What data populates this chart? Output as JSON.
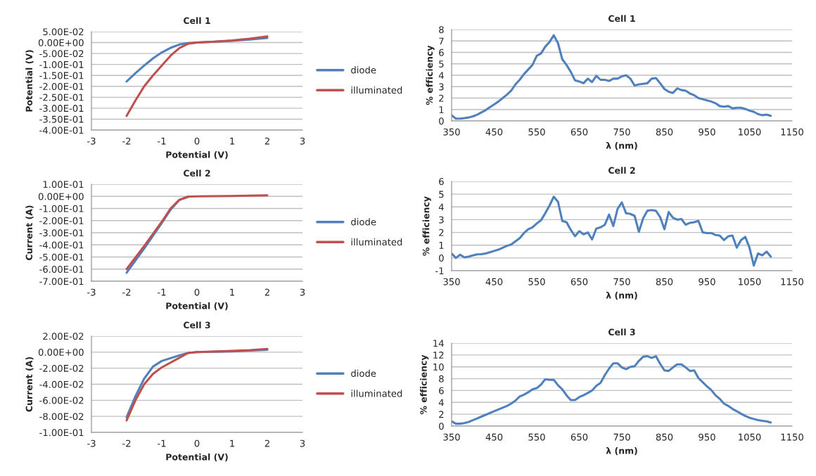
{
  "chart_data": [
    {
      "type": "line",
      "title": "Cell 1",
      "xlabel": "Potential (V)",
      "ylabel": "Potential (V)",
      "xlim": [
        -3,
        3
      ],
      "xticks": [
        -3,
        -2,
        -1,
        0,
        1,
        2,
        3
      ],
      "ylim": [
        -0.4,
        0.05
      ],
      "yticks": [
        {
          "value": 0.05,
          "label": "5.00E-02"
        },
        {
          "value": 0,
          "label": "0.00E+00"
        },
        {
          "value": -0.05,
          "label": "-5.00E-02"
        },
        {
          "value": -0.1,
          "label": "-1.00E-01"
        },
        {
          "value": -0.15,
          "label": "-1.50E-01"
        },
        {
          "value": -0.2,
          "label": "-2.00E-01"
        },
        {
          "value": -0.25,
          "label": "-2.50E-01"
        },
        {
          "value": -0.3,
          "label": "-3.00E-01"
        },
        {
          "value": -0.35,
          "label": "-3.50E-01"
        },
        {
          "value": -0.4,
          "label": "-4.00E-01"
        }
      ],
      "grid": "y",
      "legend": "right",
      "series": [
        {
          "name": "diode",
          "color": "#4f81bd",
          "x": [
            -2,
            -1.75,
            -1.5,
            -1.25,
            -1,
            -0.75,
            -0.5,
            -0.25,
            0,
            0.5,
            1,
            1.5,
            2
          ],
          "values": [
            -0.178,
            -0.14,
            -0.105,
            -0.072,
            -0.045,
            -0.024,
            -0.009,
            -0.002,
            0,
            0.004,
            0.008,
            0.014,
            0.021
          ]
        },
        {
          "name": "illuminated",
          "color": "#c0504d",
          "x": [
            -2,
            -1.75,
            -1.5,
            -1.25,
            -1,
            -0.75,
            -0.5,
            -0.25,
            0,
            0.5,
            1,
            1.5,
            2
          ],
          "values": [
            -0.335,
            -0.265,
            -0.2,
            -0.15,
            -0.105,
            -0.06,
            -0.025,
            -0.005,
            0,
            0.004,
            0.01,
            0.018,
            0.028
          ]
        }
      ]
    },
    {
      "type": "line",
      "title": "Cell 1",
      "xlabel": "λ (nm)",
      "ylabel": "% efficiency",
      "xlim": [
        350,
        1150
      ],
      "xticks": [
        350,
        450,
        550,
        650,
        750,
        850,
        950,
        1050,
        1150
      ],
      "ylim": [
        0,
        8
      ],
      "yticks": [
        0,
        1,
        2,
        3,
        4,
        5,
        6,
        7,
        8
      ],
      "grid": "y",
      "series": [
        {
          "color": "#4f81bd",
          "x": [
            350,
            360,
            370,
            380,
            390,
            400,
            410,
            420,
            430,
            440,
            450,
            460,
            470,
            480,
            490,
            500,
            510,
            520,
            530,
            540,
            550,
            560,
            570,
            580,
            590,
            600,
            610,
            620,
            630,
            640,
            650,
            660,
            670,
            680,
            690,
            700,
            710,
            720,
            730,
            740,
            750,
            760,
            770,
            780,
            790,
            800,
            810,
            820,
            830,
            840,
            850,
            860,
            870,
            880,
            890,
            900,
            910,
            920,
            930,
            940,
            950,
            960,
            970,
            980,
            990,
            1000,
            1010,
            1020,
            1030,
            1040,
            1050,
            1060,
            1070,
            1080,
            1090,
            1100
          ],
          "values": [
            0.5,
            0.2,
            0.2,
            0.25,
            0.3,
            0.4,
            0.55,
            0.75,
            0.95,
            1.2,
            1.45,
            1.7,
            2.0,
            2.3,
            2.65,
            3.2,
            3.6,
            4.1,
            4.5,
            4.9,
            5.7,
            5.9,
            6.5,
            6.9,
            7.5,
            6.8,
            5.4,
            4.9,
            4.3,
            3.55,
            3.45,
            3.3,
            3.7,
            3.4,
            3.95,
            3.6,
            3.6,
            3.5,
            3.7,
            3.7,
            3.9,
            4.0,
            3.7,
            3.1,
            3.2,
            3.25,
            3.3,
            3.7,
            3.75,
            3.3,
            2.8,
            2.55,
            2.45,
            2.85,
            2.7,
            2.65,
            2.4,
            2.25,
            2.0,
            1.9,
            1.8,
            1.7,
            1.55,
            1.3,
            1.25,
            1.3,
            1.1,
            1.15,
            1.15,
            1.05,
            0.9,
            0.8,
            0.6,
            0.5,
            0.55,
            0.45
          ]
        }
      ]
    },
    {
      "type": "line",
      "title": "Cell 2",
      "xlabel": "Potential (V)",
      "ylabel": "Current (A)",
      "xlim": [
        -3,
        3
      ],
      "xticks": [
        -3,
        -2,
        -1,
        0,
        1,
        2,
        3
      ],
      "ylim": [
        -0.7,
        0.1
      ],
      "yticks": [
        {
          "value": 0.1,
          "label": "1.00E-01"
        },
        {
          "value": 0,
          "label": "0.00E+00"
        },
        {
          "value": -0.1,
          "label": "-1.00E-01"
        },
        {
          "value": -0.2,
          "label": "-2.00E-01"
        },
        {
          "value": -0.3,
          "label": "-3.00E-01"
        },
        {
          "value": -0.4,
          "label": "-4.00E-01"
        },
        {
          "value": -0.5,
          "label": "-5.00E-01"
        },
        {
          "value": -0.6,
          "label": "-6.00E-01"
        },
        {
          "value": -0.7,
          "label": "-7.00E-01"
        }
      ],
      "grid": "y",
      "legend": "right",
      "series": [
        {
          "name": "diode",
          "color": "#4f81bd",
          "x": [
            -2,
            -1.5,
            -1,
            -0.75,
            -0.5,
            -0.25
          ],
          "values": [
            -0.63,
            -0.43,
            -0.22,
            -0.11,
            -0.03,
            -0.003
          ]
        },
        {
          "name": "illuminated",
          "color": "#c0504d",
          "x": [
            -2,
            -1.5,
            -1,
            -0.75,
            -0.5,
            -0.25,
            0,
            1,
            2
          ],
          "values": [
            -0.6,
            -0.41,
            -0.21,
            -0.1,
            -0.028,
            -0.003,
            0,
            0.003,
            0.009
          ]
        }
      ]
    },
    {
      "type": "line",
      "title": "Cell 2",
      "xlabel": "λ (nm)",
      "ylabel": "% efficiency",
      "xlim": [
        350,
        1150
      ],
      "xticks": [
        350,
        450,
        550,
        650,
        750,
        850,
        950,
        1050,
        1150
      ],
      "ylim": [
        -1,
        6
      ],
      "yticks": [
        -1,
        0,
        1,
        2,
        3,
        4,
        5,
        6
      ],
      "grid": "y",
      "series": [
        {
          "color": "#4f81bd",
          "x": [
            350,
            360,
            370,
            380,
            390,
            400,
            410,
            420,
            430,
            440,
            450,
            460,
            470,
            480,
            490,
            500,
            510,
            520,
            530,
            540,
            550,
            560,
            570,
            580,
            590,
            600,
            610,
            620,
            630,
            640,
            650,
            660,
            670,
            680,
            690,
            700,
            710,
            720,
            730,
            740,
            750,
            760,
            770,
            780,
            790,
            800,
            810,
            820,
            830,
            840,
            850,
            860,
            870,
            880,
            890,
            900,
            910,
            920,
            930,
            940,
            950,
            960,
            970,
            980,
            990,
            1000,
            1010,
            1020,
            1030,
            1040,
            1050,
            1060,
            1070,
            1080,
            1090,
            1100
          ],
          "values": [
            0.35,
            0.0,
            0.25,
            0.05,
            0.1,
            0.2,
            0.28,
            0.3,
            0.35,
            0.45,
            0.55,
            0.65,
            0.8,
            0.95,
            1.05,
            1.3,
            1.55,
            1.95,
            2.25,
            2.4,
            2.7,
            2.95,
            3.5,
            4.1,
            4.8,
            4.4,
            2.9,
            2.8,
            2.2,
            1.7,
            2.1,
            1.85,
            2.0,
            1.45,
            2.3,
            2.4,
            2.6,
            3.4,
            2.5,
            3.85,
            4.35,
            3.5,
            3.45,
            3.3,
            2.05,
            3.1,
            3.7,
            3.75,
            3.7,
            3.2,
            2.25,
            3.6,
            3.15,
            3.0,
            3.05,
            2.6,
            2.75,
            2.8,
            2.9,
            2.0,
            1.95,
            1.95,
            1.8,
            1.75,
            1.4,
            1.7,
            1.75,
            0.8,
            1.4,
            1.65,
            0.8,
            -0.6,
            0.35,
            0.2,
            0.5,
            0.1
          ]
        }
      ]
    },
    {
      "type": "line",
      "title": "Cell 3",
      "xlabel": "Potential (V)",
      "ylabel": "Current (A)",
      "xlim": [
        -3,
        3
      ],
      "xticks": [
        -3,
        -2,
        -1,
        0,
        1,
        2,
        3
      ],
      "ylim": [
        -0.1,
        0.02
      ],
      "yticks": [
        {
          "value": 0.02,
          "label": "2.00E-02"
        },
        {
          "value": 0,
          "label": "0.00E+00"
        },
        {
          "value": -0.02,
          "label": "-2.00E-02"
        },
        {
          "value": -0.04,
          "label": "-4.00E-02"
        },
        {
          "value": -0.06,
          "label": "-6.00E-02"
        },
        {
          "value": -0.08,
          "label": "-8.00E-02"
        },
        {
          "value": -0.1,
          "label": "-1.00E-01"
        }
      ],
      "grid": "y",
      "legend": "right",
      "series": [
        {
          "name": "diode",
          "color": "#4f81bd",
          "x": [
            -2,
            -1.75,
            -1.5,
            -1.25,
            -1,
            -0.5,
            -0.25,
            0,
            1,
            2
          ],
          "values": [
            -0.081,
            -0.055,
            -0.033,
            -0.018,
            -0.011,
            -0.004,
            -0.001,
            0,
            0.001,
            0.003
          ]
        },
        {
          "name": "illuminated",
          "color": "#c0504d",
          "x": [
            -2,
            -1.75,
            -1.5,
            -1.25,
            -1,
            -0.5,
            -0.25,
            0,
            1,
            1.5,
            2
          ],
          "values": [
            -0.085,
            -0.06,
            -0.04,
            -0.027,
            -0.019,
            -0.007,
            -0.001,
            0,
            0.0015,
            0.0025,
            0.004
          ]
        }
      ]
    },
    {
      "type": "line",
      "title": "Cell 3",
      "xlabel": "λ (nm)",
      "ylabel": "% efficiency",
      "xlim": [
        350,
        1150
      ],
      "xticks": [
        350,
        450,
        550,
        650,
        750,
        850,
        950,
        1050,
        1150
      ],
      "ylim": [
        0,
        14
      ],
      "yticks": [
        0,
        2,
        4,
        6,
        8,
        10,
        12,
        14
      ],
      "grid": "y",
      "series": [
        {
          "color": "#4f81bd",
          "x": [
            350,
            360,
            370,
            380,
            390,
            400,
            410,
            420,
            430,
            440,
            450,
            460,
            470,
            480,
            490,
            500,
            510,
            520,
            530,
            540,
            550,
            560,
            570,
            580,
            590,
            600,
            610,
            620,
            630,
            640,
            650,
            660,
            670,
            680,
            690,
            700,
            710,
            720,
            730,
            740,
            750,
            760,
            770,
            780,
            790,
            800,
            810,
            820,
            830,
            840,
            850,
            860,
            870,
            880,
            890,
            900,
            910,
            920,
            930,
            940,
            950,
            960,
            970,
            980,
            990,
            1000,
            1010,
            1020,
            1030,
            1040,
            1050,
            1060,
            1070,
            1080,
            1090,
            1100
          ],
          "values": [
            0.8,
            0.4,
            0.4,
            0.5,
            0.7,
            1.0,
            1.3,
            1.6,
            1.9,
            2.2,
            2.5,
            2.8,
            3.1,
            3.4,
            3.8,
            4.3,
            5.0,
            5.3,
            5.7,
            6.2,
            6.4,
            7.0,
            7.9,
            7.8,
            7.8,
            6.9,
            6.2,
            5.2,
            4.4,
            4.4,
            4.9,
            5.2,
            5.6,
            6.0,
            6.8,
            7.3,
            8.6,
            9.7,
            10.6,
            10.6,
            9.9,
            9.6,
            10.0,
            10.1,
            11.0,
            11.7,
            11.8,
            11.5,
            11.8,
            10.5,
            9.4,
            9.3,
            9.9,
            10.4,
            10.4,
            9.9,
            9.3,
            9.4,
            8.1,
            7.4,
            6.7,
            6.1,
            5.2,
            4.6,
            3.8,
            3.4,
            2.9,
            2.5,
            2.1,
            1.7,
            1.4,
            1.2,
            1.0,
            0.9,
            0.8,
            0.6
          ]
        }
      ]
    }
  ]
}
